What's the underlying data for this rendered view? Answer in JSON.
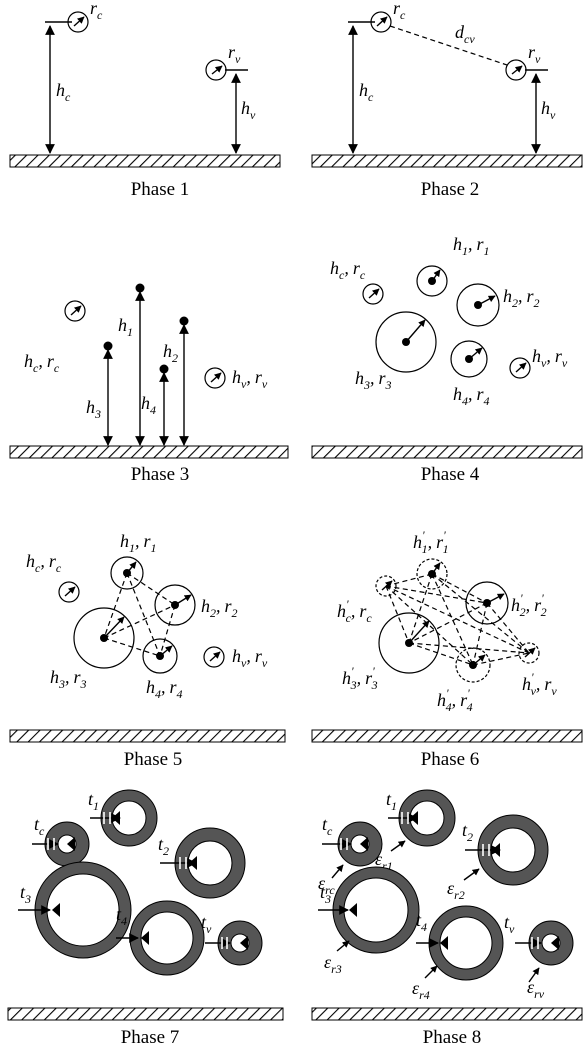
{
  "phases": [
    {
      "label": "Phase 1"
    },
    {
      "label": "Phase 2"
    },
    {
      "label": "Phase 3"
    },
    {
      "label": "Phase 4"
    },
    {
      "label": "Phase 5"
    },
    {
      "label": "Phase 6"
    },
    {
      "label": "Phase 7"
    },
    {
      "label": "Phase 8"
    }
  ],
  "symbols": {
    "h": "h",
    "r": "r",
    "t": "t",
    "d": "d",
    "eps": "ε",
    "c": "c",
    "v": "v",
    "cv": "cv",
    "rc": "rc",
    "rv": "rv",
    "n1": "1",
    "n2": "2",
    "n3": "3",
    "n4": "4",
    "r1": "r1",
    "r2": "r2",
    "r3": "r3",
    "r4": "r4",
    "comma": ",",
    "prime": "'"
  },
  "colors": {
    "ring_fill": "#555555",
    "ink": "#000000"
  }
}
